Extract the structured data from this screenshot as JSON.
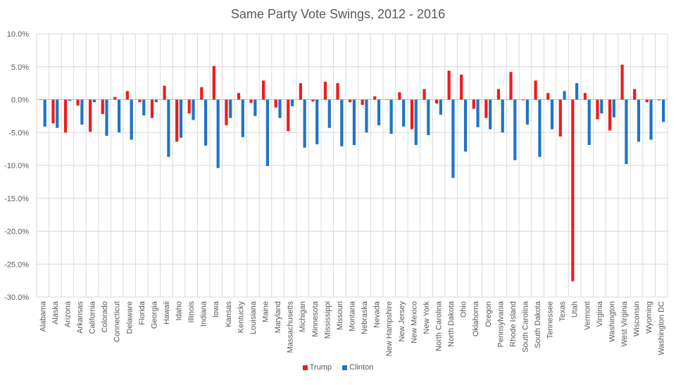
{
  "chart_data": {
    "type": "bar",
    "title": "Same Party Vote Swings, 2012 - 2016",
    "xlabel": "",
    "ylabel": "",
    "ylim": [
      -30,
      10
    ],
    "y_ticks": [
      "10.0%",
      "5.0%",
      "0.0%",
      "-5.0%",
      "-10.0%",
      "-15.0%",
      "-20.0%",
      "-25.0%",
      "-30.0%"
    ],
    "grid": true,
    "legend_position": "bottom",
    "categories": [
      "Alabama",
      "Alaska",
      "Arizona",
      "Arkansas",
      "California",
      "Colorado",
      "Connecticut",
      "Delaware",
      "Florida",
      "Georgia",
      "Hawaii",
      "Idaho",
      "Illinois",
      "Indiana",
      "Iowa",
      "Kansas",
      "Kentucky",
      "Louisiana",
      "Maine",
      "Maryland",
      "Massachusetts",
      "Michigan",
      "Minnesota",
      "Mississippi",
      "Missouri",
      "Montana",
      "Nebraska",
      "Nevada",
      "New Hampshire",
      "New Jersey",
      "New Mexico",
      "New York",
      "North Carolina",
      "North Dakota",
      "Ohio",
      "Oklahoma",
      "Oregon",
      "Pennsylvania",
      "Rhode Island",
      "South Carolina",
      "South Dakota",
      "Tennessee",
      "Texas",
      "Utah",
      "Vermont",
      "Virginia",
      "Washington",
      "West Virginia",
      "Wisconsin",
      "Wyoming",
      "Washington DC"
    ],
    "series": [
      {
        "name": "Trump",
        "color": "#ee1c1c",
        "values": [
          0.0,
          -3.6,
          -5.0,
          -0.9,
          -4.9,
          -2.2,
          0.4,
          1.3,
          -0.4,
          -2.8,
          2.1,
          -6.4,
          -2.1,
          1.9,
          5.1,
          -3.9,
          1.0,
          -0.5,
          2.9,
          -1.2,
          -4.8,
          2.5,
          -0.3,
          2.7,
          2.5,
          -0.4,
          -0.8,
          0.5,
          0.0,
          1.1,
          -4.5,
          1.6,
          -0.6,
          4.4,
          3.8,
          -1.4,
          -2.8,
          1.6,
          4.2,
          -0.1,
          2.9,
          1.0,
          -5.6,
          -27.6,
          1.0,
          -3.0,
          -4.7,
          5.3,
          1.6,
          -0.4,
          -0.1
        ]
      },
      {
        "name": "Clinton",
        "color": "#1f74c6",
        "values": [
          -4.1,
          -4.3,
          -0.2,
          -3.8,
          -0.4,
          -5.5,
          -5.0,
          -6.1,
          -2.4,
          -0.4,
          -8.7,
          -5.8,
          -3.1,
          -7.0,
          -10.4,
          -2.8,
          -5.7,
          -2.5,
          -10.1,
          -2.8,
          -1.0,
          -7.3,
          -6.8,
          -4.3,
          -7.1,
          -6.9,
          -5.0,
          -3.9,
          -5.2,
          -4.1,
          -6.9,
          -5.4,
          -2.3,
          -11.9,
          -7.9,
          -4.2,
          -4.5,
          -5.0,
          -9.2,
          -3.8,
          -8.7,
          -4.5,
          1.3,
          2.5,
          -6.9,
          -2.1,
          -2.7,
          -9.8,
          -6.4,
          -6.1,
          -3.4
        ]
      }
    ]
  }
}
